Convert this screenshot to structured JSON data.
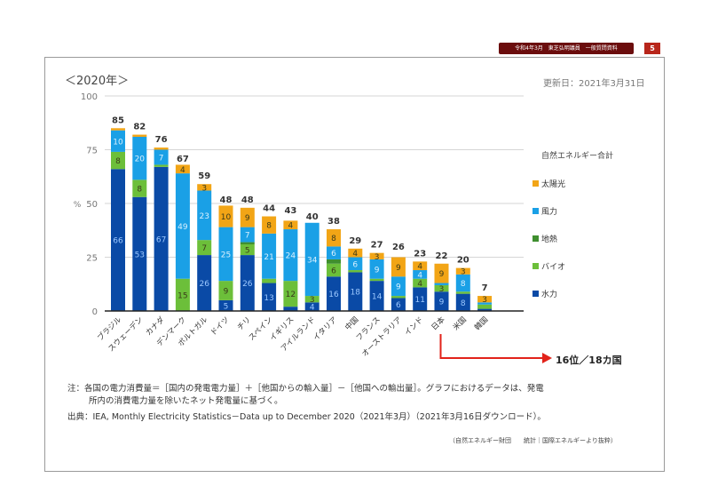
{
  "header": {
    "badge": "令和4年3月　東芝弘明議員　一般質問資料",
    "page_number": "5"
  },
  "year_label": "＜2020年＞",
  "updated": "更新日：2021年3月31日",
  "rank_label": "16位／18カ国",
  "note_line1": "注：各国の電力消費量＝［国内の発電電力量］＋［他国からの輸入量］－［他国への輸出量］。グラフにおけるデータは、発電",
  "note_line2": "所内の消費電力量を除いたネット発電量に基づく。",
  "source": "出典：IEA, Monthly Electricity Statistics－Data up to December 2020（2021年3月）（2021年3月16日ダウンロード）。",
  "credit": "（自然エネルギー財団　　統計｜国際エネルギーより抜粋）",
  "chart_data": {
    "type": "bar",
    "stacked": true,
    "title": "＜2020年＞",
    "xlabel": "",
    "ylabel": "%",
    "ylim": [
      0,
      100
    ],
    "yticks": [
      0,
      25,
      50,
      75,
      100
    ],
    "grid": true,
    "legend_title": "自然エネルギー合計",
    "legend_position": "right",
    "categories": [
      "ブラジル",
      "スウェーデン",
      "カナダ",
      "デンマーク",
      "ポルトガル",
      "ドイツ",
      "チリ",
      "スペイン",
      "イギリス",
      "アイルランド",
      "イタリア",
      "中国",
      "フランス",
      "オーストラリア",
      "インド",
      "日本",
      "米国",
      "韓国"
    ],
    "totals": [
      85,
      82,
      76,
      67,
      59,
      48,
      48,
      44,
      43,
      40,
      38,
      29,
      27,
      26,
      23,
      22,
      20,
      7
    ],
    "series": [
      {
        "name": "水力",
        "color": "#0a4aa6",
        "values": [
          66,
          53,
          67,
          0,
          26,
          5,
          26,
          13,
          2,
          4,
          16,
          18,
          14,
          6,
          11,
          9,
          8,
          1
        ],
        "labeled": [
          true,
          true,
          true,
          false,
          true,
          true,
          true,
          true,
          false,
          true,
          true,
          true,
          true,
          true,
          true,
          true,
          true,
          false
        ]
      },
      {
        "name": "バイオ",
        "color": "#6cbf3a",
        "values": [
          8,
          8,
          1,
          15,
          7,
          9,
          5,
          2,
          12,
          3,
          6,
          1,
          1,
          1,
          4,
          3,
          1,
          2
        ],
        "labeled": [
          true,
          true,
          false,
          true,
          true,
          true,
          true,
          false,
          true,
          true,
          true,
          false,
          false,
          false,
          true,
          true,
          false,
          false
        ]
      },
      {
        "name": "地熱",
        "color": "#3f8f2f",
        "values": [
          0,
          0,
          0,
          0,
          0,
          0,
          1,
          0,
          0,
          0,
          2,
          0,
          0,
          0,
          0,
          0,
          0,
          0
        ],
        "labeled": [
          false,
          false,
          false,
          false,
          false,
          false,
          false,
          false,
          false,
          false,
          false,
          false,
          false,
          false,
          false,
          false,
          false,
          false
        ]
      },
      {
        "name": "風力",
        "color": "#1aa0e6",
        "values": [
          10,
          20,
          7,
          49,
          23,
          25,
          7,
          21,
          24,
          34,
          6,
          6,
          9,
          9,
          4,
          1,
          8,
          1
        ],
        "labeled": [
          true,
          true,
          true,
          true,
          true,
          true,
          true,
          true,
          true,
          true,
          true,
          true,
          true,
          true,
          true,
          false,
          true,
          false
        ]
      },
      {
        "name": "太陽光",
        "color": "#f2a516",
        "values": [
          1,
          1,
          1,
          4,
          3,
          10,
          9,
          8,
          4,
          0,
          8,
          4,
          3,
          9,
          4,
          9,
          3,
          3
        ],
        "labeled": [
          false,
          false,
          false,
          true,
          true,
          true,
          true,
          true,
          true,
          false,
          true,
          true,
          true,
          true,
          true,
          true,
          true,
          true
        ]
      }
    ],
    "legend_order": [
      "太陽光",
      "風力",
      "地熱",
      "バイオ",
      "水力"
    ],
    "annotation": {
      "target": "日本",
      "text": "16位／18カ国",
      "color": "#e2231a"
    }
  }
}
